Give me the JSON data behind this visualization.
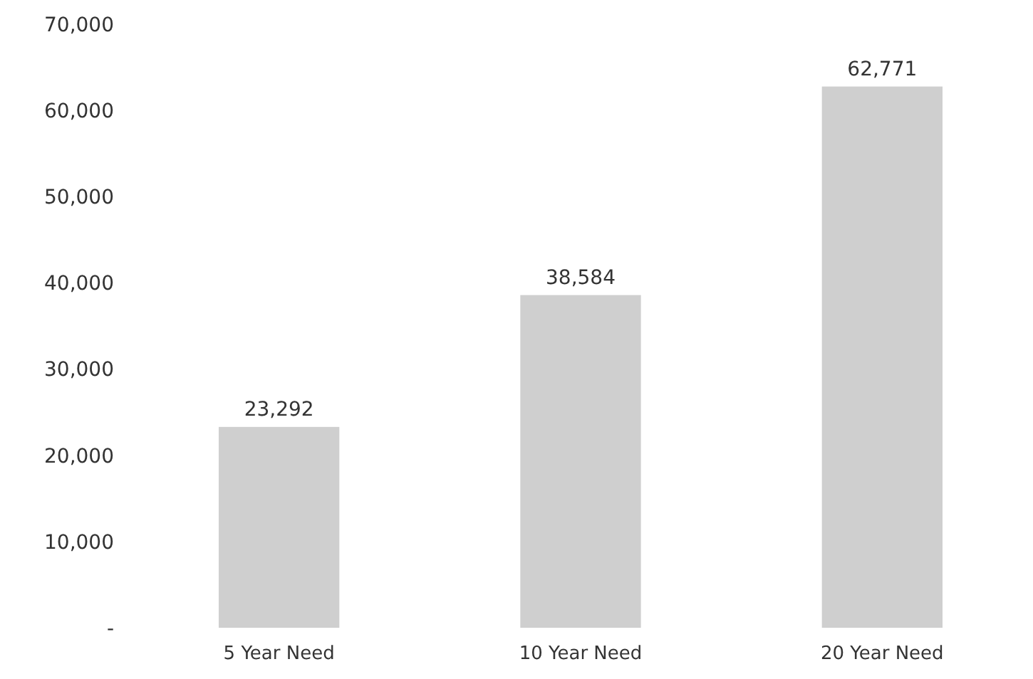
{
  "chart_data": {
    "type": "bar",
    "categories": [
      "5 Year Need",
      "10 Year Need",
      "20 Year Need"
    ],
    "values": [
      23292,
      38584,
      62771
    ],
    "color": "#cfcfcf",
    "ylim": [
      0,
      70000
    ],
    "yticks": [
      {
        "value": 0,
        "label": "-"
      },
      {
        "value": 10000,
        "label": "10,000"
      },
      {
        "value": 20000,
        "label": "20,000"
      },
      {
        "value": 30000,
        "label": "30,000"
      },
      {
        "value": 40000,
        "label": "40,000"
      },
      {
        "value": 50000,
        "label": "50,000"
      },
      {
        "value": 60000,
        "label": "60,000"
      },
      {
        "value": 70000,
        "label": "70,000"
      }
    ],
    "value_labels": [
      "23,292",
      "38,584",
      "62,771"
    ],
    "grid": false
  }
}
